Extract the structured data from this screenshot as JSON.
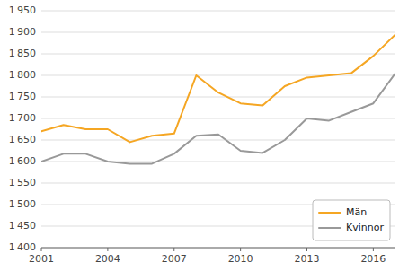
{
  "chart_data": {
    "type": "line",
    "x": [
      2001,
      2002,
      2003,
      2004,
      2005,
      2006,
      2007,
      2008,
      2009,
      2010,
      2011,
      2012,
      2013,
      2014,
      2015,
      2016,
      2017
    ],
    "series": [
      {
        "name": "Män",
        "color": "#F5A623",
        "values": [
          1670,
          1685,
          1675,
          1675,
          1645,
          1660,
          1665,
          1800,
          1760,
          1735,
          1730,
          1775,
          1795,
          1800,
          1805,
          1845,
          1895
        ]
      },
      {
        "name": "Kvinnor",
        "color": "#999999",
        "values": [
          1600,
          1618,
          1618,
          1600,
          1595,
          1595,
          1618,
          1660,
          1663,
          1625,
          1620,
          1650,
          1700,
          1695,
          1715,
          1735,
          1805
        ]
      }
    ],
    "xlim": [
      2001,
      2017
    ],
    "xticks": [
      2001,
      2004,
      2007,
      2010,
      2013,
      2016
    ],
    "ylim": [
      1400,
      1950
    ],
    "yticks": [
      {
        "value": 1400,
        "label": "1 400"
      },
      {
        "value": 1450,
        "label": "1 450"
      },
      {
        "value": 1500,
        "label": "1 500"
      },
      {
        "value": 1550,
        "label": "1 550"
      },
      {
        "value": 1600,
        "label": "1 600"
      },
      {
        "value": 1650,
        "label": "1 650"
      },
      {
        "value": 1700,
        "label": "1 700"
      },
      {
        "value": 1750,
        "label": "1 750"
      },
      {
        "value": 1800,
        "label": "1 800"
      },
      {
        "value": 1850,
        "label": "1 850"
      },
      {
        "value": 1900,
        "label": "1 900"
      },
      {
        "value": 1950,
        "label": "1 950"
      }
    ],
    "grid": true,
    "legend": "lower right"
  }
}
